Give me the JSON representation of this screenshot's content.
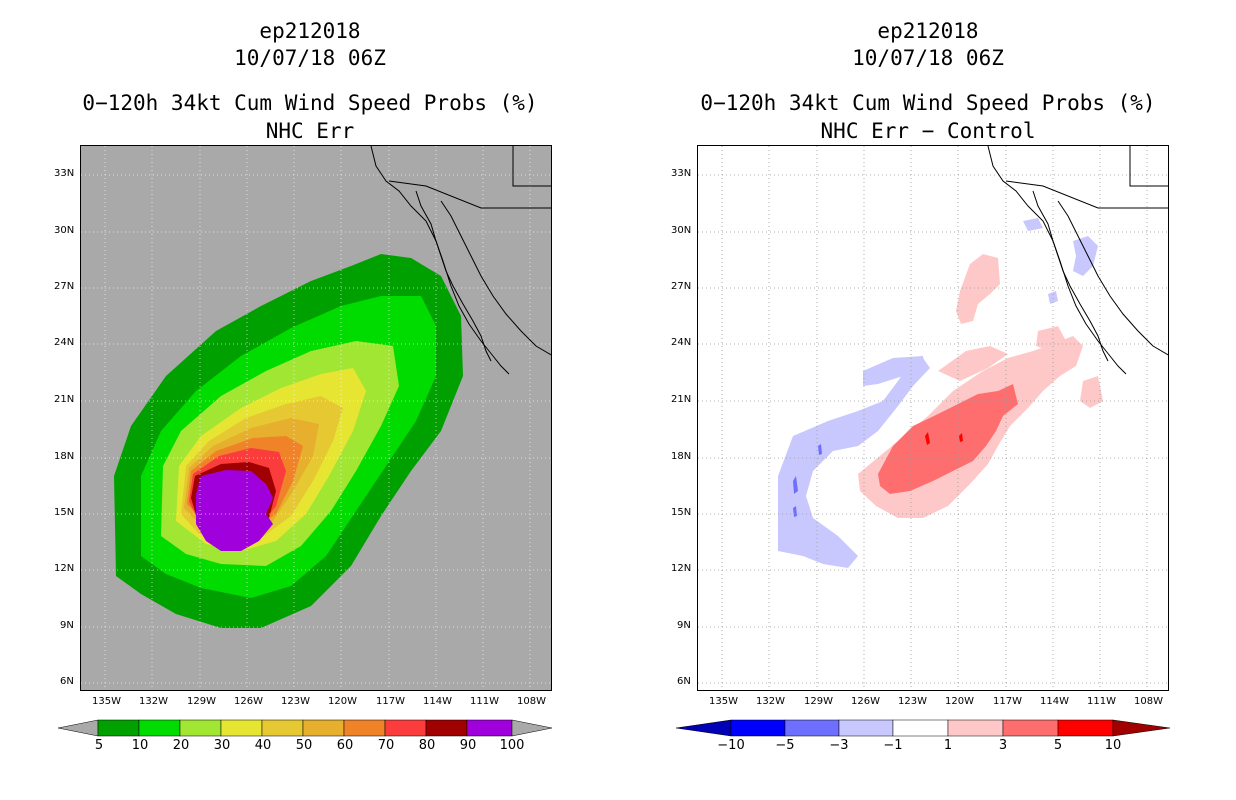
{
  "left_panel": {
    "storm_id": "ep212018",
    "datetime": "10/07/18 06Z",
    "product": "0−120h 34kt Cum Wind Speed Probs (%)",
    "subtitle": "NHC Err",
    "colorbar_labels": [
      "5",
      "10",
      "20",
      "30",
      "40",
      "50",
      "60",
      "70",
      "80",
      "90",
      "100"
    ]
  },
  "right_panel": {
    "storm_id": "ep212018",
    "datetime": "10/07/18 06Z",
    "product": "0−120h 34kt Cum Wind Speed Probs (%)",
    "subtitle": "NHC Err − Control",
    "colorbar_labels": [
      "−10",
      "−5",
      "−3",
      "−1",
      "1",
      "3",
      "5",
      "10"
    ]
  },
  "lat_labels": [
    "33N",
    "30N",
    "27N",
    "24N",
    "21N",
    "18N",
    "15N",
    "12N",
    "9N",
    "6N"
  ],
  "lon_labels": [
    "135W",
    "132W",
    "129W",
    "126W",
    "123W",
    "120W",
    "117W",
    "114W",
    "111W",
    "108W"
  ],
  "colors": {
    "background_left": "#a9a9a9",
    "prob_scale": [
      "#00a000",
      "#00dc00",
      "#a0e632",
      "#e6e632",
      "#e6c832",
      "#e6af2d",
      "#f08228",
      "#fa3c3c",
      "#a00000",
      "#a000dc"
    ],
    "diff_scale": [
      "#0000b4",
      "#0000ff",
      "#6e6eff",
      "#c8c8ff",
      "#ffffff",
      "#ffc8c8",
      "#ff6e6e",
      "#ff0000",
      "#a00000"
    ]
  }
}
